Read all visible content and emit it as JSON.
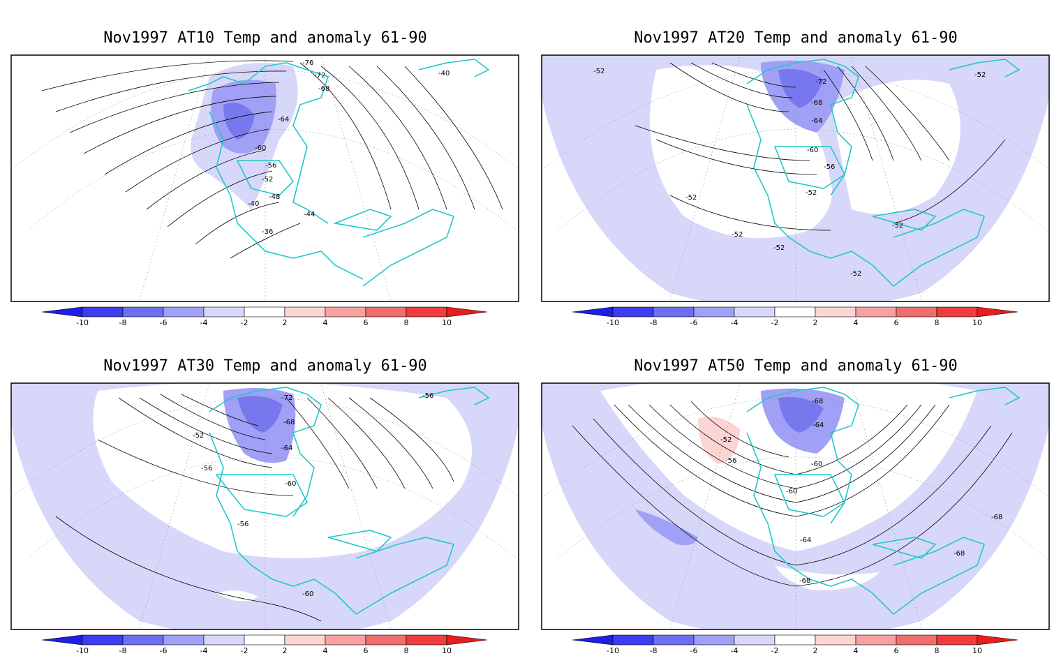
{
  "panels": [
    {
      "title": "Nov1997 AT10 Temp and anomaly 61-90",
      "contour_labels": [
        "-76",
        "-72",
        "-68",
        "-64",
        "-60",
        "-56",
        "-52",
        "-48",
        "-44",
        "-40",
        "-36",
        "-40"
      ]
    },
    {
      "title": "Nov1997 AT20 Temp and anomaly 61-90",
      "contour_labels": [
        "-52",
        "-72",
        "-68",
        "-64",
        "-60",
        "-56",
        "-52",
        "-52",
        "-52",
        "-52",
        "-52",
        "-52",
        "-52"
      ]
    },
    {
      "title": "Nov1997 AT30 Temp and anomaly 61-90",
      "contour_labels": [
        "-72",
        "-56",
        "-68",
        "-52",
        "-64",
        "-56",
        "-60",
        "-56",
        "-60"
      ]
    },
    {
      "title": "Nov1997 AT50 Temp and anomaly 61-90",
      "contour_labels": [
        "-68",
        "-64",
        "-52",
        "-56",
        "-60",
        "-60",
        "-68",
        "-64",
        "-68",
        "-68"
      ]
    }
  ],
  "colorbar": {
    "ticks": [
      "-10",
      "-8",
      "-6",
      "-4",
      "-2",
      "2",
      "4",
      "6",
      "8",
      "10"
    ],
    "colors": [
      "#1e1ee6",
      "#3c3cf0",
      "#6e6ef2",
      "#a0a0f6",
      "#d7d7fa",
      "#ffffff",
      "#fbd4d4",
      "#f6a0a0",
      "#f06e6e",
      "#f03c3c",
      "#e61e1e"
    ]
  },
  "colors": {
    "coastline": "#22c8c8",
    "anomaly_cold_light": "#d7d7fa",
    "anomaly_cold_mid": "#a0a0f6",
    "anomaly_cold_strong": "#7878ee",
    "anomaly_warm_light": "#fbd4d4"
  }
}
